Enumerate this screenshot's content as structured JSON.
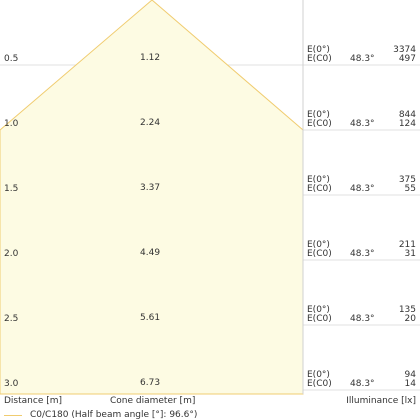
{
  "chart_data": {
    "type": "cone_diagram",
    "xlabel": "Distance [m]",
    "center_label": "Cone diameter [m]",
    "ylabel": "Illuminance [lx]",
    "legend": "C0/C180 (Half beam angle [°]: 96.6°)",
    "half_beam_angle_deg": 96.6,
    "e_labels": [
      "E(0°)",
      "E(C0)"
    ],
    "rows": [
      {
        "distance": "0.5",
        "diameter": "1.12",
        "angle": "48.3°",
        "e0": "3374",
        "ec0": "497"
      },
      {
        "distance": "1.0",
        "diameter": "2.24",
        "angle": "48.3°",
        "e0": "844",
        "ec0": "124"
      },
      {
        "distance": "1.5",
        "diameter": "3.37",
        "angle": "48.3°",
        "e0": "375",
        "ec0": "55"
      },
      {
        "distance": "2.0",
        "diameter": "4.49",
        "angle": "48.3°",
        "e0": "211",
        "ec0": "31"
      },
      {
        "distance": "2.5",
        "diameter": "5.61",
        "angle": "48.3°",
        "e0": "135",
        "ec0": "20"
      },
      {
        "distance": "3.0",
        "diameter": "6.73",
        "angle": "48.3°",
        "e0": "94",
        "ec0": "14"
      }
    ],
    "colors": {
      "fill": "#fdfbe3",
      "stroke": "#f0cc70",
      "grid": "#e2e2e2"
    }
  }
}
